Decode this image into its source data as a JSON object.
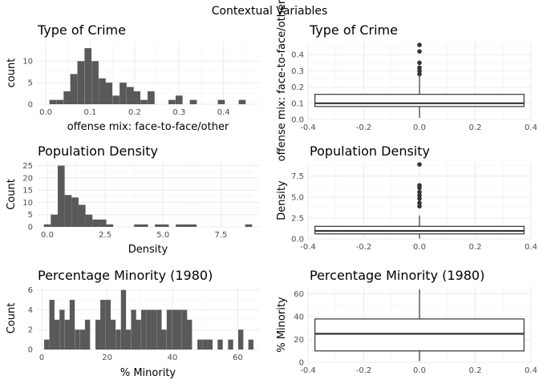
{
  "figure_title": "Contextual Variables",
  "chart_data": [
    {
      "id": "crime-hist",
      "type": "bar",
      "subtype": "histogram",
      "title": "Type of Crime",
      "xlabel": "offense mix: face-to-face/other",
      "ylabel": "count",
      "xlim": [
        -0.02,
        0.48
      ],
      "ylim": [
        0,
        14.5
      ],
      "xticks": [
        0.0,
        0.1,
        0.2,
        0.3,
        0.4
      ],
      "xtick_labels": [
        "0.0",
        "0.1",
        "0.2",
        "0.3",
        "0.4"
      ],
      "yticks": [
        0,
        5,
        10
      ],
      "ytick_labels": [
        "0",
        "5",
        "10"
      ],
      "bin_width": 0.0157,
      "bins": [
        {
          "x": 0.016,
          "count": 1
        },
        {
          "x": 0.032,
          "count": 1
        },
        {
          "x": 0.048,
          "count": 3
        },
        {
          "x": 0.063,
          "count": 7
        },
        {
          "x": 0.079,
          "count": 10
        },
        {
          "x": 0.095,
          "count": 13
        },
        {
          "x": 0.111,
          "count": 10
        },
        {
          "x": 0.127,
          "count": 6
        },
        {
          "x": 0.142,
          "count": 5
        },
        {
          "x": 0.158,
          "count": 2
        },
        {
          "x": 0.174,
          "count": 5
        },
        {
          "x": 0.19,
          "count": 4
        },
        {
          "x": 0.205,
          "count": 3
        },
        {
          "x": 0.221,
          "count": 1
        },
        {
          "x": 0.237,
          "count": 3
        },
        {
          "x": 0.284,
          "count": 1
        },
        {
          "x": 0.3,
          "count": 2
        },
        {
          "x": 0.332,
          "count": 1
        },
        {
          "x": 0.395,
          "count": 1
        },
        {
          "x": 0.442,
          "count": 1
        }
      ]
    },
    {
      "id": "crime-box",
      "type": "box",
      "title": "Type of Crime",
      "xlabel": "",
      "ylabel": "offense mix: face-to-face/other",
      "xlim": [
        -0.4,
        0.4
      ],
      "ylim": [
        0,
        0.48
      ],
      "xticks": [
        -0.4,
        -0.2,
        0.0,
        0.2,
        0.4
      ],
      "xtick_labels": [
        "-0.4",
        "-0.2",
        "0.0",
        "0.2",
        "0.4"
      ],
      "yticks": [
        0.0,
        0.1,
        0.2,
        0.3,
        0.4
      ],
      "ytick_labels": [
        "0.0",
        "0.1",
        "0.2",
        "0.3",
        "0.4"
      ],
      "box": {
        "x_min": -0.375,
        "x_max": 0.375,
        "q1": 0.08,
        "median": 0.1,
        "q3": 0.155,
        "whisker_low": 0.01,
        "whisker_high": 0.27
      },
      "outliers": [
        0.28,
        0.3,
        0.32,
        0.35,
        0.42,
        0.46
      ]
    },
    {
      "id": "density-hist",
      "type": "bar",
      "subtype": "histogram",
      "title": "Population Density",
      "xlabel": "Density",
      "ylabel": "Count",
      "xlim": [
        -0.45,
        9.15
      ],
      "ylim": [
        0,
        26.5
      ],
      "xticks": [
        0.0,
        2.5,
        5.0,
        7.5
      ],
      "xtick_labels": [
        "0.0",
        "2.5",
        "5.0",
        "7.5"
      ],
      "yticks": [
        0,
        5,
        10,
        15,
        20,
        25
      ],
      "ytick_labels": [
        "0",
        "5",
        "10",
        "15",
        "20",
        "25"
      ],
      "bin_width": 0.3,
      "bins": [
        {
          "x": 0.0,
          "count": 1
        },
        {
          "x": 0.3,
          "count": 5
        },
        {
          "x": 0.6,
          "count": 25
        },
        {
          "x": 0.9,
          "count": 13
        },
        {
          "x": 1.2,
          "count": 12
        },
        {
          "x": 1.5,
          "count": 9
        },
        {
          "x": 1.8,
          "count": 5
        },
        {
          "x": 2.1,
          "count": 3
        },
        {
          "x": 2.4,
          "count": 3
        },
        {
          "x": 2.7,
          "count": 1
        },
        {
          "x": 3.9,
          "count": 1
        },
        {
          "x": 4.2,
          "count": 1
        },
        {
          "x": 4.8,
          "count": 1
        },
        {
          "x": 5.1,
          "count": 1
        },
        {
          "x": 5.7,
          "count": 1
        },
        {
          "x": 6.0,
          "count": 1
        },
        {
          "x": 6.3,
          "count": 1
        },
        {
          "x": 8.7,
          "count": 1
        }
      ]
    },
    {
      "id": "density-box",
      "type": "box",
      "title": "Population Density",
      "xlabel": "",
      "ylabel": "Density",
      "xlim": [
        -0.4,
        0.4
      ],
      "ylim": [
        0,
        9.2
      ],
      "xticks": [
        -0.4,
        -0.2,
        0.0,
        0.2,
        0.4
      ],
      "xtick_labels": [
        "-0.4",
        "-0.2",
        "0.0",
        "0.2",
        "0.4"
      ],
      "yticks": [
        0.0,
        2.5,
        5.0,
        7.5
      ],
      "ytick_labels": [
        "0.0",
        "2.5",
        "5.0",
        "7.5"
      ],
      "box": {
        "x_min": -0.375,
        "x_max": 0.375,
        "q1": 0.6,
        "median": 0.95,
        "q3": 1.5,
        "whisker_low": 0.05,
        "whisker_high": 2.8
      },
      "outliers": [
        3.9,
        4.3,
        4.8,
        5.2,
        5.6,
        6.1,
        6.4,
        8.9
      ]
    },
    {
      "id": "minority-hist",
      "type": "bar",
      "subtype": "histogram",
      "title": "Percentage Minority (1980)",
      "xlabel": "% Minority",
      "ylabel": "Count",
      "xlim": [
        -1.5,
        66.5
      ],
      "ylim": [
        0,
        6.3
      ],
      "xticks": [
        0,
        20,
        40,
        60
      ],
      "xtick_labels": [
        "0",
        "20",
        "40",
        "60"
      ],
      "yticks": [
        0,
        2,
        4,
        6
      ],
      "ytick_labels": [
        "0",
        "2",
        "4",
        "6"
      ],
      "bin_width": 1.56,
      "bins": [
        {
          "x": 1.5,
          "count": 1
        },
        {
          "x": 3.1,
          "count": 5
        },
        {
          "x": 4.6,
          "count": 3
        },
        {
          "x": 6.2,
          "count": 4
        },
        {
          "x": 7.8,
          "count": 3
        },
        {
          "x": 9.3,
          "count": 5
        },
        {
          "x": 10.9,
          "count": 2
        },
        {
          "x": 12.5,
          "count": 2
        },
        {
          "x": 14.0,
          "count": 3
        },
        {
          "x": 17.2,
          "count": 3
        },
        {
          "x": 18.7,
          "count": 5
        },
        {
          "x": 20.3,
          "count": 5
        },
        {
          "x": 21.8,
          "count": 3
        },
        {
          "x": 23.4,
          "count": 2
        },
        {
          "x": 25.0,
          "count": 6
        },
        {
          "x": 26.5,
          "count": 2
        },
        {
          "x": 28.1,
          "count": 4
        },
        {
          "x": 29.6,
          "count": 3
        },
        {
          "x": 31.2,
          "count": 4
        },
        {
          "x": 32.8,
          "count": 4
        },
        {
          "x": 34.3,
          "count": 4
        },
        {
          "x": 35.9,
          "count": 4
        },
        {
          "x": 37.4,
          "count": 2
        },
        {
          "x": 39.0,
          "count": 4
        },
        {
          "x": 40.6,
          "count": 4
        },
        {
          "x": 42.1,
          "count": 4
        },
        {
          "x": 43.7,
          "count": 4
        },
        {
          "x": 45.2,
          "count": 3
        },
        {
          "x": 48.4,
          "count": 1
        },
        {
          "x": 50.0,
          "count": 1
        },
        {
          "x": 51.5,
          "count": 1
        },
        {
          "x": 54.6,
          "count": 1
        },
        {
          "x": 57.8,
          "count": 1
        },
        {
          "x": 60.9,
          "count": 2
        },
        {
          "x": 64.0,
          "count": 1
        }
      ]
    },
    {
      "id": "minority-box",
      "type": "box",
      "title": "Percentage Minority (1980)",
      "xlabel": "",
      "ylabel": "% Minority",
      "xlim": [
        -0.4,
        0.4
      ],
      "ylim": [
        0,
        66
      ],
      "xticks": [
        -0.4,
        -0.2,
        0.0,
        0.2,
        0.4
      ],
      "xtick_labels": [
        "-0.4",
        "-0.2",
        "0.0",
        "0.2",
        "0.4"
      ],
      "yticks": [
        0,
        20,
        40,
        60
      ],
      "ytick_labels": [
        "0",
        "20",
        "40",
        "60"
      ],
      "box": {
        "x_min": -0.375,
        "x_max": 0.375,
        "q1": 10,
        "median": 25,
        "q3": 38,
        "whisker_low": 1,
        "whisker_high": 64
      },
      "outliers": []
    }
  ]
}
